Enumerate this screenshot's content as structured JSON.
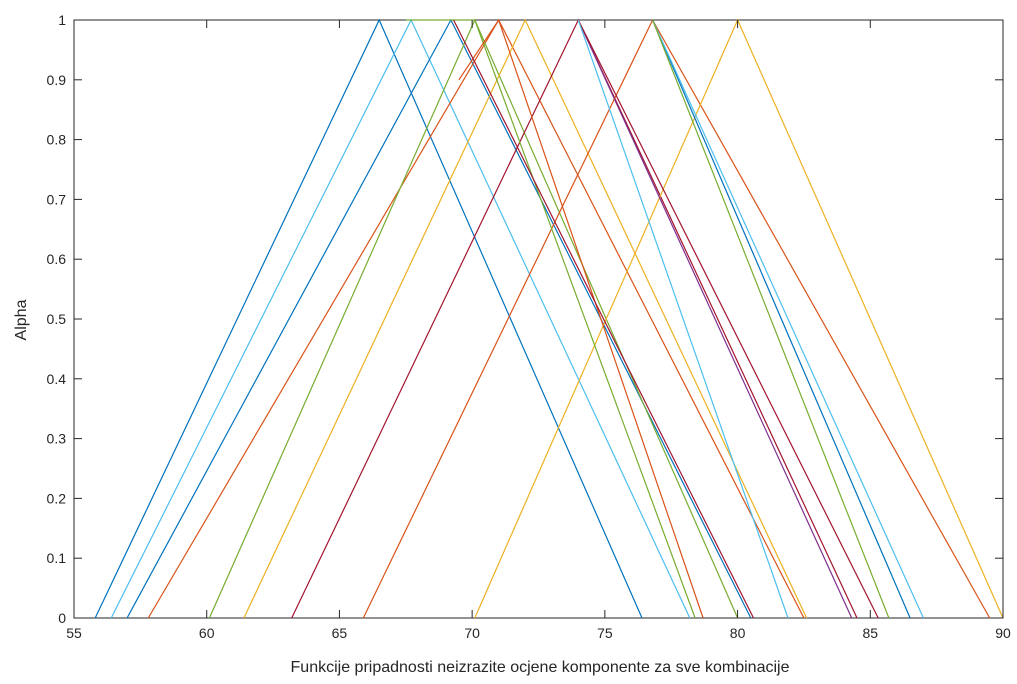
{
  "chart_data": {
    "type": "line",
    "title": "",
    "xlabel": "Funkcije pripadnosti neizrazite ocjene komponente za sve kombinacije",
    "ylabel": "Alpha",
    "xlim": [
      55,
      90
    ],
    "ylim": [
      0,
      1
    ],
    "xticks": [
      55,
      60,
      65,
      70,
      75,
      80,
      85,
      90
    ],
    "yticks": [
      0,
      0.1,
      0.2,
      0.3,
      0.4,
      0.5,
      0.6,
      0.7,
      0.8,
      0.9,
      1
    ],
    "grid": false,
    "legend": "none",
    "series": [
      {
        "color": "#0072BD",
        "x": [
          55.8,
          66.5,
          76.4
        ],
        "y": [
          0,
          1,
          0
        ]
      },
      {
        "color": "#4DBEEE",
        "x": [
          56.4,
          67.7,
          78.2
        ],
        "y": [
          0,
          1,
          0
        ]
      },
      {
        "color": "#0072BD",
        "x": [
          57.0,
          69.2,
          80.5
        ],
        "y": [
          0,
          1,
          0
        ]
      },
      {
        "color": "#D95319",
        "x": [
          57.8,
          71.0,
          82.5
        ],
        "y": [
          0,
          1,
          0
        ]
      },
      {
        "color": "#77AC30",
        "x": [
          60.1,
          70.1,
          80.0
        ],
        "y": [
          0,
          1,
          0
        ]
      },
      {
        "color": "#EDB120",
        "x": [
          61.4,
          72.0,
          82.6
        ],
        "y": [
          0,
          1,
          0
        ]
      },
      {
        "color": "#A2142F",
        "x": [
          63.2,
          74.0,
          84.5
        ],
        "y": [
          0,
          1,
          0
        ]
      },
      {
        "color": "#D95319",
        "x": [
          65.9,
          76.8,
          89.5
        ],
        "y": [
          0,
          1,
          0
        ]
      },
      {
        "color": "#EDB120",
        "x": [
          70.1,
          80.0,
          90.0
        ],
        "y": [
          0,
          1,
          0
        ]
      },
      {
        "color": "#77AC30",
        "x": [
          67.5,
          70.1,
          78.4
        ],
        "y": [
          1,
          1,
          0
        ]
      },
      {
        "color": "#D95319",
        "x": [
          69.5,
          71.0,
          78.7
        ],
        "y": [
          0.9,
          1,
          0
        ]
      },
      {
        "color": "#7E2F8E",
        "x": [
          74.0,
          84.3
        ],
        "y": [
          1,
          0
        ]
      },
      {
        "color": "#A2142F",
        "x": [
          74.0,
          85.3
        ],
        "y": [
          1,
          0
        ]
      },
      {
        "color": "#4DBEEE",
        "x": [
          74.0,
          81.9
        ],
        "y": [
          1,
          0
        ]
      },
      {
        "color": "#0072BD",
        "x": [
          76.8,
          86.5
        ],
        "y": [
          1,
          0
        ]
      },
      {
        "color": "#4DBEEE",
        "x": [
          76.8,
          87.0
        ],
        "y": [
          1,
          0
        ]
      },
      {
        "color": "#77AC30",
        "x": [
          76.8,
          85.7
        ],
        "y": [
          1,
          0
        ]
      },
      {
        "color": "#A2142F",
        "x": [
          69.3,
          80.6
        ],
        "y": [
          1,
          0
        ]
      }
    ]
  }
}
